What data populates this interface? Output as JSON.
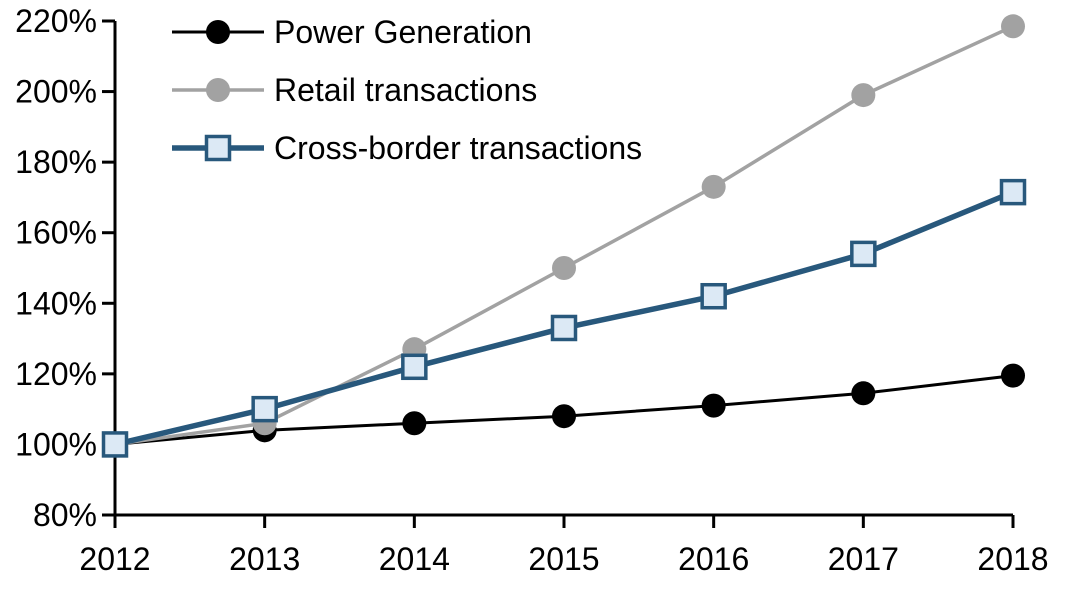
{
  "chart_data": {
    "type": "line",
    "title": "",
    "xlabel": "",
    "ylabel": "",
    "x_categories": [
      "2012",
      "2013",
      "2014",
      "2015",
      "2016",
      "2017",
      "2018"
    ],
    "y_ticks": [
      "80%",
      "100%",
      "120%",
      "140%",
      "160%",
      "180%",
      "200%",
      "220%"
    ],
    "ylim": [
      80,
      220
    ],
    "y_tick_step": 20,
    "grid": false,
    "legend_position": "top-left",
    "axis_color": "#000000",
    "series": [
      {
        "name": "Power Generation",
        "values": [
          100,
          104,
          106,
          108,
          111,
          114.5,
          119.5
        ],
        "color": "#000000",
        "marker": "circle",
        "marker_fill": "#000000",
        "line_width": 3
      },
      {
        "name": "Retail transactions",
        "values": [
          100,
          106,
          127,
          150,
          173,
          199,
          218.5
        ],
        "color": "#A2A2A2",
        "marker": "circle",
        "marker_fill": "#A2A2A2",
        "line_width": 3.5
      },
      {
        "name": "Cross-border transactions",
        "values": [
          100,
          110,
          122,
          133,
          142,
          154,
          171.5
        ],
        "color": "#28587C",
        "marker": "square",
        "marker_fill": "#DCE9F5",
        "line_width": 5.5
      }
    ]
  }
}
